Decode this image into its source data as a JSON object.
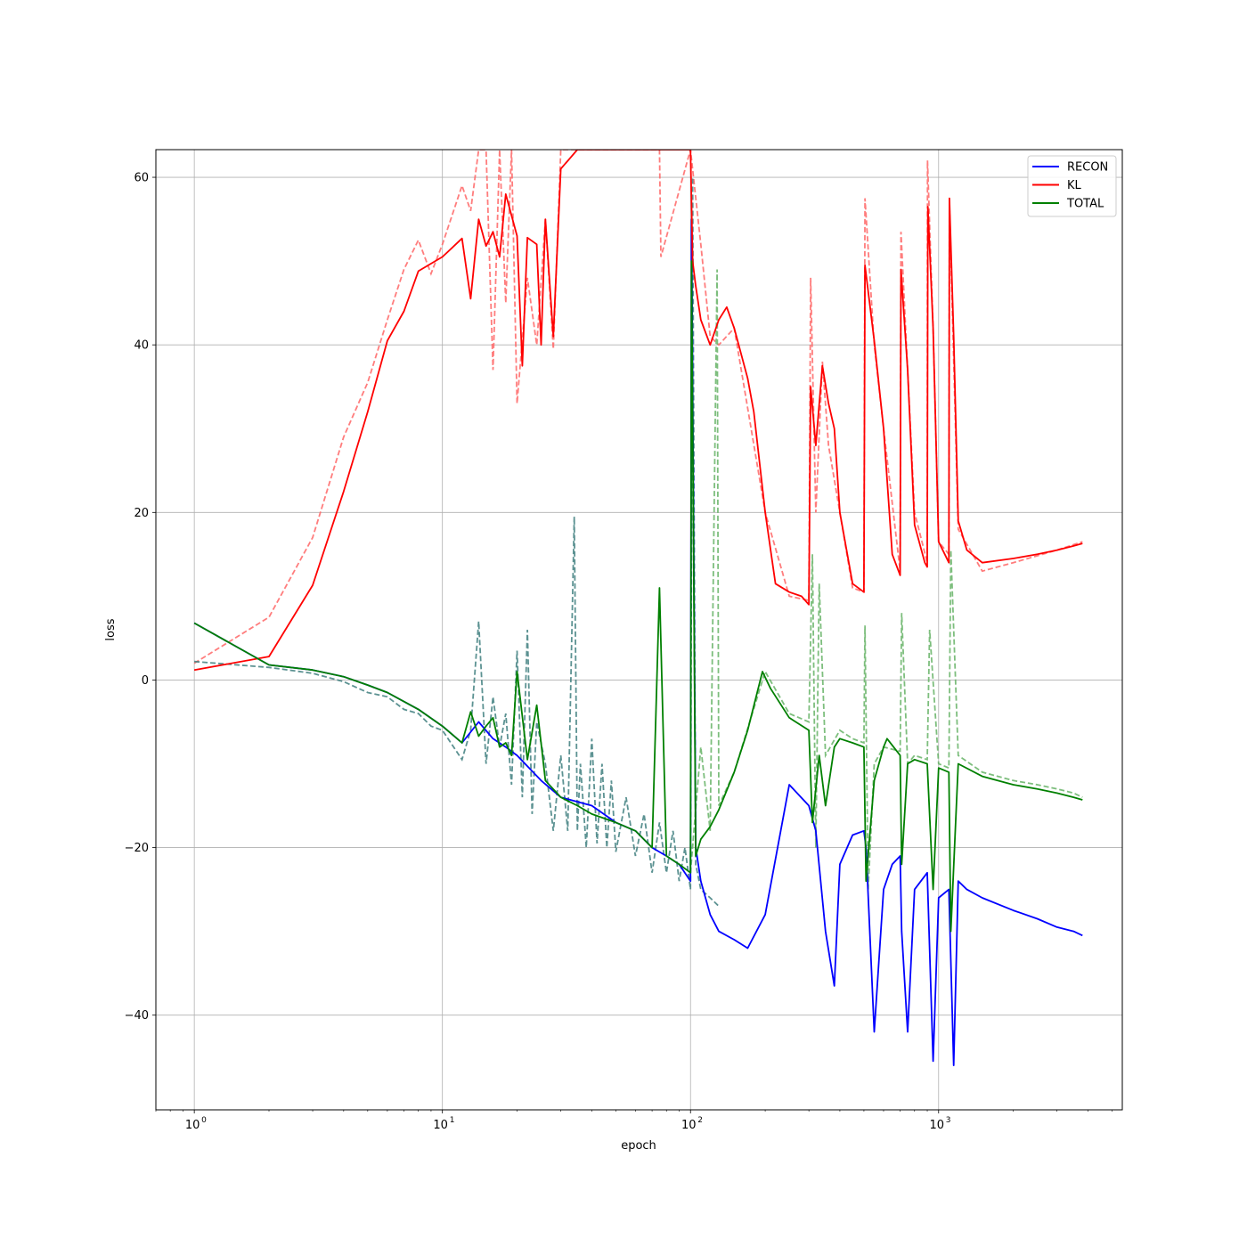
{
  "chart_data": {
    "type": "line",
    "xlabel": "epoch",
    "ylabel": "loss",
    "xscale": "log",
    "xlim": [
      0.7,
      5500
    ],
    "ylim": [
      -51.3,
      63.3
    ],
    "grid": true,
    "legend_position": "top-right",
    "x_ticks": [
      {
        "value": 1,
        "label": "10",
        "exp": "0"
      },
      {
        "value": 10,
        "label": "10",
        "exp": "1"
      },
      {
        "value": 100,
        "label": "10",
        "exp": "2"
      },
      {
        "value": 1000,
        "label": "10",
        "exp": "3"
      }
    ],
    "y_ticks": [
      {
        "value": 60,
        "label": "60"
      },
      {
        "value": 40,
        "label": "40"
      },
      {
        "value": 20,
        "label": "20"
      },
      {
        "value": 0,
        "label": "0"
      },
      {
        "value": -20,
        "label": "−20"
      },
      {
        "value": -40,
        "label": "−40"
      }
    ],
    "series": [
      {
        "name": "RECON",
        "color": "#0000ff",
        "style": "solid",
        "x": [
          1,
          2,
          3,
          4,
          5,
          6,
          8,
          10,
          12,
          14,
          16,
          18,
          20,
          25,
          30,
          40,
          50,
          60,
          70,
          80,
          90,
          100,
          101,
          105,
          110,
          120,
          130,
          150,
          170,
          200,
          250,
          300,
          320,
          350,
          380,
          400,
          450,
          500,
          510,
          550,
          600,
          650,
          700,
          710,
          750,
          800,
          900,
          950,
          1000,
          1100,
          1150,
          1200,
          1300,
          1500,
          2000,
          2500,
          3000,
          3500,
          3800
        ],
        "values": [
          6.8,
          1.8,
          1.2,
          0.4,
          -0.6,
          -1.5,
          -3.5,
          -5.5,
          -7.5,
          -5.0,
          -7.0,
          -8.0,
          -9.0,
          -12.0,
          -14.0,
          -15.0,
          -17.0,
          -18.0,
          -20.0,
          -21.0,
          -22.0,
          -24.0,
          55.0,
          -20.0,
          -24.0,
          -28.0,
          -30.0,
          -31.0,
          -32.0,
          -28.0,
          -12.5,
          -15.0,
          -18.0,
          -30.0,
          -36.5,
          -22.0,
          -18.5,
          -18.0,
          -20.0,
          -42.0,
          -25.0,
          -22.0,
          -21.0,
          -30.0,
          -42.0,
          -25.0,
          -23.0,
          -45.5,
          -26.0,
          -25.0,
          -46.0,
          -24.0,
          -25.0,
          -26.0,
          -27.5,
          -28.5,
          -29.5,
          -30.0,
          -30.5
        ]
      },
      {
        "name": "KL",
        "color": "#ff0000",
        "style": "solid",
        "x": [
          1,
          2,
          3,
          4,
          5,
          6,
          7,
          8,
          10,
          12,
          13,
          14,
          15,
          16,
          17,
          18,
          20,
          21,
          22,
          24,
          25,
          26,
          28,
          30,
          35,
          100,
          102,
          105,
          110,
          120,
          130,
          140,
          150,
          170,
          180,
          200,
          220,
          250,
          280,
          300,
          305,
          320,
          340,
          360,
          380,
          400,
          450,
          500,
          505,
          550,
          600,
          650,
          700,
          705,
          750,
          800,
          880,
          900,
          905,
          950,
          1000,
          1100,
          1105,
          1150,
          1200,
          1300,
          1500,
          2000,
          2500,
          3000,
          3500,
          3800
        ],
        "values": [
          1.2,
          2.8,
          11.3,
          22.5,
          32.0,
          40.5,
          44.0,
          48.8,
          50.5,
          52.7,
          45.5,
          55.0,
          51.8,
          53.5,
          50.5,
          58.0,
          53.0,
          37.5,
          52.8,
          52.0,
          40.0,
          55.0,
          41.0,
          61.0,
          63.3,
          63.3,
          50.0,
          47.0,
          43.0,
          40.0,
          43.0,
          44.5,
          42.0,
          36.0,
          32.0,
          20.0,
          11.5,
          10.5,
          10.0,
          9.0,
          35.0,
          28.0,
          37.5,
          33.0,
          30.0,
          20.0,
          11.5,
          10.5,
          49.5,
          40.5,
          30.0,
          15.0,
          12.5,
          49.0,
          37.0,
          18.5,
          14.0,
          13.5,
          56.5,
          42.0,
          16.5,
          14.0,
          57.5,
          41.0,
          19.0,
          15.5,
          14.0,
          14.5,
          15.0,
          15.5,
          16.0,
          16.3
        ]
      },
      {
        "name": "TOTAL",
        "color": "#008000",
        "style": "solid",
        "x": [
          1,
          2,
          3,
          4,
          5,
          6,
          8,
          10,
          12,
          13,
          14,
          15,
          16,
          17,
          18,
          19,
          20,
          22,
          24,
          26,
          30,
          35,
          40,
          50,
          60,
          70,
          75,
          80,
          90,
          100,
          101,
          105,
          110,
          120,
          130,
          150,
          170,
          195,
          210,
          250,
          300,
          310,
          330,
          350,
          380,
          400,
          450,
          500,
          510,
          550,
          600,
          620,
          700,
          710,
          750,
          800,
          900,
          950,
          1000,
          1100,
          1120,
          1200,
          1500,
          2000,
          2500,
          3000,
          3500,
          3800
        ],
        "values": [
          6.8,
          1.8,
          1.2,
          0.4,
          -0.6,
          -1.5,
          -3.5,
          -5.5,
          -7.5,
          -3.8,
          -6.7,
          -5.5,
          -4.5,
          -8.0,
          -7.5,
          -9.0,
          1.0,
          -9.5,
          -3.0,
          -12.0,
          -14.0,
          -15.0,
          -16.0,
          -17.0,
          -18.0,
          -20.0,
          11.0,
          -21.0,
          -22.0,
          -23.0,
          50.0,
          -21.0,
          -19.0,
          -17.5,
          -15.5,
          -11.0,
          -6.0,
          1.0,
          -1.0,
          -4.5,
          -6.0,
          -17.0,
          -9.0,
          -15.0,
          -8.0,
          -7.0,
          -7.5,
          -8.0,
          -24.0,
          -12.0,
          -8.0,
          -7.0,
          -9.0,
          -22.0,
          -10.0,
          -9.5,
          -10.0,
          -25.0,
          -10.5,
          -11.0,
          -30.0,
          -10.0,
          -11.5,
          -12.5,
          -13.0,
          -13.5,
          -14.0,
          -14.3
        ]
      }
    ],
    "validation_series": [
      {
        "of": "KL",
        "color": "#ff6666",
        "style": "dashed",
        "x": [
          1,
          2,
          3,
          4,
          5,
          6,
          7,
          8,
          9,
          10,
          12,
          13,
          14,
          15,
          16,
          17,
          18,
          19,
          20,
          22,
          24,
          26,
          28,
          30,
          75,
          76,
          100,
          110,
          120,
          130,
          150,
          200,
          250,
          300,
          305,
          320,
          340,
          360,
          400,
          450,
          500,
          505,
          550,
          600,
          700,
          705,
          750,
          800,
          900,
          902,
          950,
          1000,
          1100,
          1105,
          1200,
          1500,
          2000,
          3000,
          3800
        ],
        "values": [
          2.0,
          7.5,
          17.0,
          29.0,
          35.5,
          43.0,
          49.0,
          52.5,
          48.5,
          52.0,
          59.0,
          56.0,
          63.3,
          63.3,
          37.0,
          63.3,
          45.0,
          63.3,
          33.0,
          48.0,
          40.0,
          55.0,
          39.5,
          63.3,
          63.3,
          50.5,
          63.3,
          52.0,
          41.0,
          40.0,
          42.0,
          20.0,
          10.0,
          9.5,
          48.0,
          20.0,
          38.0,
          28.0,
          20.0,
          11.0,
          10.5,
          57.5,
          40.0,
          30.0,
          13.0,
          53.5,
          37.0,
          20.0,
          14.0,
          62.0,
          42.0,
          16.5,
          15.0,
          57.0,
          18.0,
          13.0,
          14.0,
          15.5,
          16.5
        ]
      },
      {
        "of": "RECON",
        "color": "#3f7f7f",
        "style": "dashed",
        "x": [
          1,
          2,
          3,
          4,
          5,
          6,
          7,
          8,
          9,
          10,
          12,
          13,
          14,
          15,
          16,
          17,
          18,
          19,
          20,
          21,
          22,
          23,
          24,
          26,
          28,
          30,
          32,
          34,
          35,
          36,
          38,
          40,
          42,
          44,
          46,
          48,
          50,
          55,
          60,
          65,
          70,
          75,
          80,
          85,
          90,
          95,
          100,
          102,
          105,
          110,
          120,
          130
        ],
        "values": [
          2.2,
          1.5,
          0.8,
          -0.2,
          -1.5,
          -2.0,
          -3.5,
          -4.0,
          -5.5,
          -6.0,
          -9.5,
          -6.0,
          7.0,
          -10.0,
          -2.0,
          -8.0,
          -4.0,
          -12.5,
          3.5,
          -14.0,
          6.0,
          -16.0,
          -5.0,
          -10.0,
          -18.0,
          -9.0,
          -18.0,
          19.5,
          -18.0,
          -10.0,
          -20.0,
          -7.0,
          -19.5,
          -10.0,
          -20.0,
          -12.0,
          -20.5,
          -14.0,
          -21.0,
          -16.0,
          -23.0,
          -17.0,
          -23.0,
          -18.0,
          -24.0,
          -20.0,
          -25.0,
          60.0,
          -22.0,
          -25.0,
          -26.0,
          -27.0
        ]
      },
      {
        "of": "TOTAL",
        "color": "#66b366",
        "style": "dashed",
        "x": [
          100,
          110,
          120,
          128,
          130,
          150,
          200,
          250,
          300,
          310,
          320,
          330,
          350,
          400,
          450,
          500,
          505,
          520,
          550,
          600,
          700,
          710,
          750,
          800,
          900,
          920,
          1000,
          1100,
          1120,
          1200,
          1500,
          2000,
          2500,
          3000,
          3500,
          3800
        ],
        "values": [
          -23.0,
          -8.0,
          -18.0,
          49.0,
          -15.0,
          -11.0,
          1.0,
          -4.0,
          -5.0,
          15.0,
          -20.0,
          11.5,
          -9.0,
          -6.0,
          -7.0,
          -7.5,
          6.5,
          -25.0,
          -10.0,
          -8.0,
          -8.5,
          8.0,
          -10.0,
          -9.0,
          -9.5,
          6.0,
          -10.0,
          -10.5,
          15.5,
          -9.0,
          -11.0,
          -12.0,
          -12.5,
          -13.0,
          -13.5,
          -14.0
        ]
      }
    ]
  }
}
